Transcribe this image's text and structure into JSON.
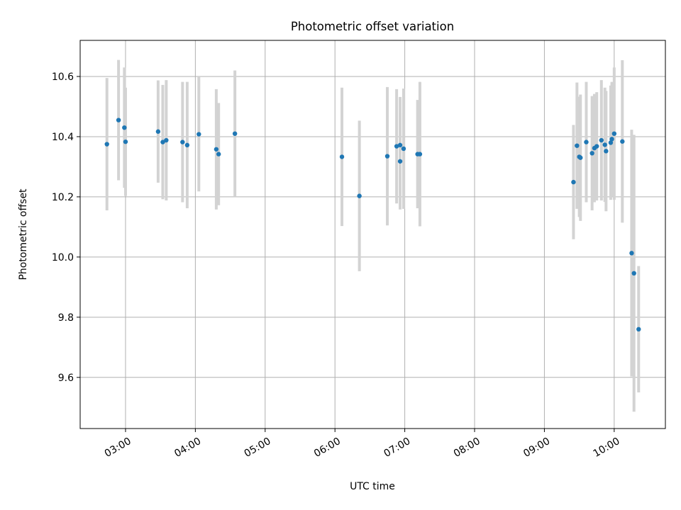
{
  "chart_data": {
    "type": "scatter",
    "title": "Photometric offset variation",
    "xlabel": "UTC time",
    "ylabel": "Photometric offset",
    "x_ticks": [
      "03:00",
      "04:00",
      "05:00",
      "06:00",
      "07:00",
      "08:00",
      "09:00",
      "10:00"
    ],
    "y_ticks": [
      "9.6",
      "9.8",
      "10.0",
      "10.2",
      "10.4",
      "10.6"
    ],
    "xlim": [
      "02:21",
      "10:44"
    ],
    "ylim": [
      9.43,
      10.72
    ],
    "grid": true,
    "colors": {
      "point": "#1f77b4",
      "errorbar": "#d3d3d3",
      "grid": "#b0b0b0"
    },
    "points": [
      {
        "t": "02:44",
        "y": 10.375,
        "err": 0.22
      },
      {
        "t": "02:54",
        "y": 10.455,
        "err": 0.2
      },
      {
        "t": "02:59",
        "y": 10.43,
        "err": 0.2
      },
      {
        "t": "03:00",
        "y": 10.383,
        "err": 0.18
      },
      {
        "t": "03:28",
        "y": 10.417,
        "err": 0.17
      },
      {
        "t": "03:32",
        "y": 10.382,
        "err": 0.19
      },
      {
        "t": "03:35",
        "y": 10.388,
        "err": 0.2
      },
      {
        "t": "03:49",
        "y": 10.382,
        "err": 0.2
      },
      {
        "t": "03:53",
        "y": 10.372,
        "err": 0.21
      },
      {
        "t": "04:03",
        "y": 10.408,
        "err": 0.19
      },
      {
        "t": "04:18",
        "y": 10.358,
        "err": 0.2
      },
      {
        "t": "04:20",
        "y": 10.342,
        "err": 0.17
      },
      {
        "t": "04:34",
        "y": 10.41,
        "err": 0.21
      },
      {
        "t": "06:06",
        "y": 10.333,
        "err": 0.23
      },
      {
        "t": "06:21",
        "y": 10.203,
        "err": 0.25
      },
      {
        "t": "06:45",
        "y": 10.335,
        "err": 0.23
      },
      {
        "t": "06:53",
        "y": 10.368,
        "err": 0.19
      },
      {
        "t": "06:56",
        "y": 10.318,
        "err": 0.16
      },
      {
        "t": "06:56",
        "y": 10.372,
        "err": 0.16
      },
      {
        "t": "06:59",
        "y": 10.36,
        "err": 0.2
      },
      {
        "t": "07:11",
        "y": 10.342,
        "err": 0.18
      },
      {
        "t": "07:13",
        "y": 10.342,
        "err": 0.24
      },
      {
        "t": "09:25",
        "y": 10.249,
        "err": 0.19
      },
      {
        "t": "09:28",
        "y": 10.37,
        "err": 0.21
      },
      {
        "t": "09:30",
        "y": 10.333,
        "err": 0.2
      },
      {
        "t": "09:31",
        "y": 10.33,
        "err": 0.21
      },
      {
        "t": "09:36",
        "y": 10.382,
        "err": 0.2
      },
      {
        "t": "09:41",
        "y": 10.345,
        "err": 0.19
      },
      {
        "t": "09:43",
        "y": 10.362,
        "err": 0.18
      },
      {
        "t": "09:45",
        "y": 10.368,
        "err": 0.18
      },
      {
        "t": "09:49",
        "y": 10.388,
        "err": 0.2
      },
      {
        "t": "09:52",
        "y": 10.373,
        "err": 0.19
      },
      {
        "t": "09:53",
        "y": 10.352,
        "err": 0.2
      },
      {
        "t": "09:57",
        "y": 10.38,
        "err": 0.19
      },
      {
        "t": "09:58",
        "y": 10.392,
        "err": 0.19
      },
      {
        "t": "10:00",
        "y": 10.41,
        "err": 0.22
      },
      {
        "t": "10:07",
        "y": 10.384,
        "err": 0.27
      },
      {
        "t": "10:15",
        "y": 10.013,
        "err": 0.41
      },
      {
        "t": "10:17",
        "y": 9.946,
        "err": 0.46
      },
      {
        "t": "10:21",
        "y": 9.76,
        "err": 0.21
      }
    ]
  }
}
